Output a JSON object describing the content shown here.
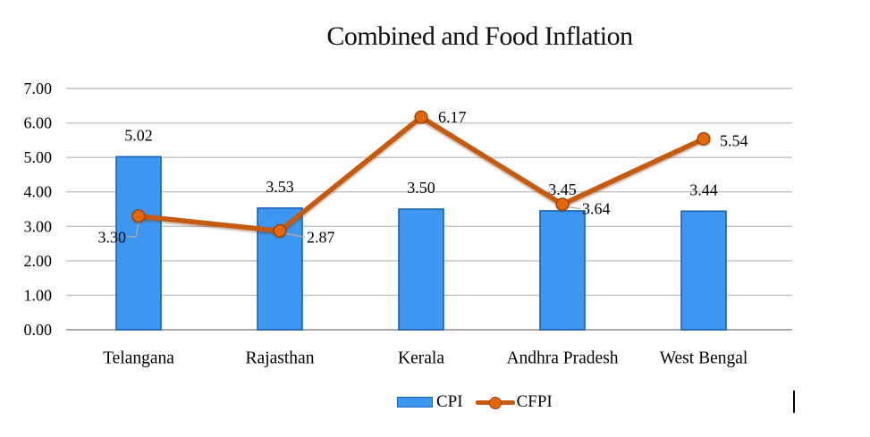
{
  "title": "Combined and Food Inflation",
  "legend": [
    {
      "label": "CPI",
      "swatch": "bar-swatch-icon"
    },
    {
      "label": "CFPI",
      "swatch": "line-swatch-icon"
    }
  ],
  "colors": {
    "bar_fill": "#3D96F0",
    "bar_border": "#1A62B5",
    "line": "#C55A11",
    "marker_fill": "#E4670D",
    "marker_border": "#9C4508",
    "gridline": "#C3C3C3",
    "axis_line": "#9E9E9E",
    "leader": "#ABABAB",
    "text": "#000000"
  },
  "chart_data": {
    "type": "combo",
    "title": "Combined and Food Inflation",
    "categories": [
      "Telangana",
      "Rajasthan",
      "Kerala",
      "Andhra Pradesh",
      "West Bengal"
    ],
    "series": [
      {
        "name": "CPI",
        "type": "bar",
        "values": [
          5.02,
          3.53,
          3.5,
          3.45,
          3.44
        ]
      },
      {
        "name": "CFPI",
        "type": "line",
        "values": [
          3.3,
          2.87,
          6.17,
          3.64,
          5.54
        ]
      }
    ],
    "data_labels": {
      "CPI": [
        "5.02",
        "3.53",
        "3.50",
        "3.45",
        "3.44"
      ],
      "CFPI": [
        "3.30",
        "2.87",
        "6.17",
        "3.64",
        "5.54"
      ]
    },
    "ylim": [
      0,
      7
    ],
    "ytick_step": 1,
    "ytick_labels": [
      "0.00",
      "1.00",
      "2.00",
      "3.00",
      "4.00",
      "5.00",
      "6.00",
      "7.00"
    ],
    "grid": true,
    "legend_position": "bottom"
  }
}
